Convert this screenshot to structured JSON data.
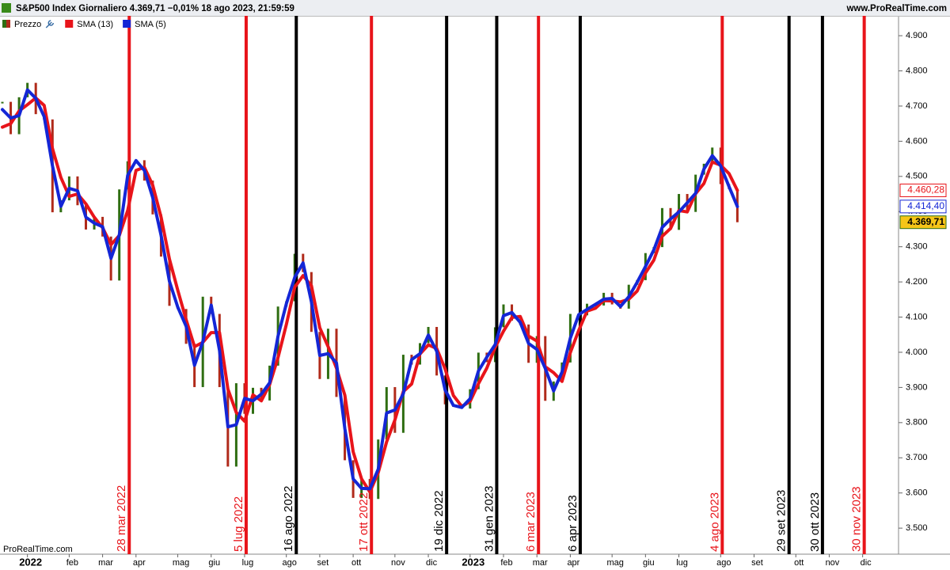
{
  "chart_data": {
    "type": "line",
    "header": "S&P500 Index Giornaliero 4.369,71 −0,01% 18 ago 2023, 21:59:59",
    "source": "www.ProRealTime.com",
    "watermark": "ProRealTime.com",
    "categories": [
      null,
      null,
      null,
      "2022",
      null,
      null,
      null,
      null,
      "feb",
      null,
      null,
      null,
      "mar",
      null,
      null,
      null,
      "apr",
      null,
      null,
      null,
      null,
      "mag",
      null,
      null,
      null,
      "giu",
      null,
      null,
      null,
      "lug",
      null,
      null,
      null,
      null,
      "ago",
      null,
      null,
      null,
      "set",
      null,
      null,
      null,
      "ott",
      null,
      null,
      null,
      null,
      "nov",
      null,
      null,
      null,
      "dic",
      null,
      null,
      null,
      null,
      "2023",
      null,
      null,
      null,
      "feb",
      null,
      null,
      null,
      "mar",
      null,
      null,
      null,
      "apr",
      null,
      null,
      null,
      null,
      "mag",
      null,
      null,
      null,
      "giu",
      null,
      null,
      null,
      "lug",
      null,
      null,
      null,
      null,
      "ago",
      null,
      null,
      null,
      "set",
      null,
      null,
      null,
      null,
      "ott",
      null,
      null,
      null,
      "nov",
      null,
      null,
      null,
      "dic",
      null,
      null,
      null,
      null
    ],
    "events": [
      null,
      null,
      null,
      null,
      null,
      null,
      null,
      null,
      null,
      null,
      null,
      null,
      null,
      null,
      null,
      {
        "label": "28 mar 2022",
        "color": "#e8141a"
      },
      null,
      null,
      null,
      null,
      null,
      null,
      null,
      null,
      null,
      null,
      null,
      null,
      null,
      {
        "label": "5 lug 2022",
        "color": "#e8141a"
      },
      null,
      null,
      null,
      null,
      null,
      {
        "label": "16 ago 2022",
        "color": "#000000"
      },
      null,
      null,
      null,
      null,
      null,
      null,
      null,
      null,
      {
        "label": "17 ott 2022",
        "color": "#e8141a"
      },
      null,
      null,
      null,
      null,
      null,
      null,
      null,
      null,
      {
        "label": "19 dic 2022",
        "color": "#000000"
      },
      null,
      null,
      null,
      null,
      null,
      {
        "label": "31 gen 2023",
        "color": "#000000"
      },
      null,
      null,
      null,
      null,
      {
        "label": "6 mar 2023",
        "color": "#e8141a"
      },
      null,
      null,
      null,
      null,
      {
        "label": "6 apr 2023",
        "color": "#000000"
      },
      null,
      null,
      null,
      null,
      null,
      null,
      null,
      null,
      null,
      null,
      null,
      null,
      null,
      null,
      null,
      null,
      {
        "label": "4 ago 2023",
        "color": "#e8141a"
      },
      null,
      null,
      null,
      null,
      null,
      null,
      null,
      {
        "label": "29 set 2023",
        "color": "#000000"
      },
      null,
      null,
      null,
      {
        "label": "30 ott 2023",
        "color": "#000000"
      },
      null,
      null,
      null,
      null,
      {
        "label": "30 nov 2023",
        "color": "#e8141a"
      },
      null,
      null,
      null,
      null
    ],
    "series": [
      {
        "name": "Prezzo",
        "color": "#2f6e12",
        "down_color": "#b02a1a",
        "last_label": "4.369,71",
        "label_bg": "#f5c518",
        "label_fg": "#000000",
        "values": [
          4712,
          4620,
          4725,
          4766,
          4677,
          4662,
          4398,
          4432,
          4500,
          4418,
          4349,
          4385,
          4329,
          4204,
          4463,
          4543,
          4546,
          4488,
          4392,
          4272,
          4132,
          4123,
          4024,
          3901,
          4158,
          4109,
          3901,
          3675,
          3912,
          3825,
          3899,
          3863,
          3962,
          4130,
          4145,
          4280,
          4228,
          4058,
          3924,
          4067,
          3873,
          3693,
          3586,
          3640,
          3583,
          3752,
          3901,
          3771,
          3993,
          3965,
          4026,
          4072,
          3934,
          3852,
          3845,
          3840,
          3895,
          3999,
          3972,
          4071,
          4136,
          4090,
          4079,
          3970,
          4046,
          3862,
          3917,
          3971,
          4109,
          4105,
          4138,
          4133,
          4169,
          4136,
          4124,
          4192,
          4205,
          4282,
          4299,
          4410,
          4348,
          4450,
          4399,
          4505,
          4536,
          4582,
          4478,
          4464,
          4369.71,
          null,
          null,
          null,
          null,
          null,
          null,
          null,
          null,
          null,
          null,
          null,
          null,
          null,
          null,
          null,
          null,
          null,
          null,
          null
        ]
      },
      {
        "name": "SMA (13)",
        "color": "#e8141a",
        "last_label": "4.460,28",
        "label_bg": "#ffffff",
        "label_fg": "#e8141a",
        "values": [
          4640,
          4650,
          4686,
          4704,
          4723,
          4702,
          4579,
          4497,
          4443,
          4450,
          4422,
          4384,
          4354,
          4306,
          4332,
          4403,
          4517,
          4526,
          4475,
          4384,
          4265,
          4176,
          4093,
          4016,
          4028,
          4056,
          4056,
          3895,
          3829,
          3804,
          3879,
          3862,
          3908,
          3985,
          4079,
          4185,
          4218,
          4189,
          4070,
          4016,
          3955,
          3878,
          3717,
          3640,
          3603,
          3658,
          3745,
          3808,
          3888,
          3910,
          3995,
          4021,
          4011,
          3953,
          3877,
          3846,
          3860,
          3911,
          3955,
          4014,
          4060,
          4099,
          4102,
          4046,
          4032,
          3959,
          3942,
          3917,
          3999,
          4062,
          4117,
          4125,
          4147,
          4146,
          4143,
          4151,
          4174,
          4226,
          4262,
          4330,
          4352,
          4403,
          4399,
          4451,
          4480,
          4541,
          4532,
          4508,
          4460.28,
          null,
          null,
          null,
          null,
          null,
          null,
          null,
          null,
          null,
          null,
          null,
          null,
          null,
          null,
          null,
          null,
          null,
          null,
          null
        ]
      },
      {
        "name": "SMA (5)",
        "color": "#1426d6",
        "last_label": "4.414,40",
        "label_bg": "#ffffff",
        "label_fg": "#1426d6",
        "values": [
          4690,
          4666,
          4673,
          4746,
          4722,
          4670,
          4530,
          4415,
          4466,
          4459,
          4384,
          4367,
          4357,
          4267,
          4334,
          4503,
          4545,
          4517,
          4440,
          4332,
          4202,
          4128,
          4074,
          3963,
          4030,
          4134,
          4005,
          3788,
          3794,
          3869,
          3862,
          3881,
          3913,
          4046,
          4138,
          4213,
          4254,
          4143,
          3991,
          3996,
          3970,
          3783,
          3640,
          3613,
          3612,
          3668,
          3827,
          3836,
          3882,
          3979,
          3996,
          4049,
          4003,
          3893,
          3849,
          3843,
          3868,
          3947,
          3986,
          4022,
          4104,
          4113,
          4085,
          4025,
          4008,
          3954,
          3890,
          3944,
          4040,
          4107,
          4122,
          4136,
          4151,
          4153,
          4130,
          4158,
          4199,
          4244,
          4291,
          4355,
          4379,
          4399,
          4425,
          4452,
          4521,
          4559,
          4530,
          4471,
          4414.4,
          null,
          null,
          null,
          null,
          null,
          null,
          null,
          null,
          null,
          null,
          null,
          null,
          null,
          null,
          null,
          null,
          null,
          null,
          null
        ]
      }
    ],
    "ylim": [
      3426,
      4952
    ],
    "yticks": [
      {
        "value": 3500,
        "label": "3.500"
      },
      {
        "value": 3600,
        "label": "3.600"
      },
      {
        "value": 3700,
        "label": "3.700"
      },
      {
        "value": 3800,
        "label": "3.800"
      },
      {
        "value": 3900,
        "label": "3.900"
      },
      {
        "value": 4000,
        "label": "4.000"
      },
      {
        "value": 4100,
        "label": "4.100"
      },
      {
        "value": 4200,
        "label": "4.200"
      },
      {
        "value": 4300,
        "label": "4.300"
      },
      {
        "value": 4400,
        "label": "4.400"
      },
      {
        "value": 4500,
        "label": "4.500"
      },
      {
        "value": 4600,
        "label": "4.600"
      },
      {
        "value": 4700,
        "label": "4.700"
      },
      {
        "value": 4800,
        "label": "4.800"
      },
      {
        "value": 4900,
        "label": "4.900"
      }
    ],
    "grid": false
  }
}
